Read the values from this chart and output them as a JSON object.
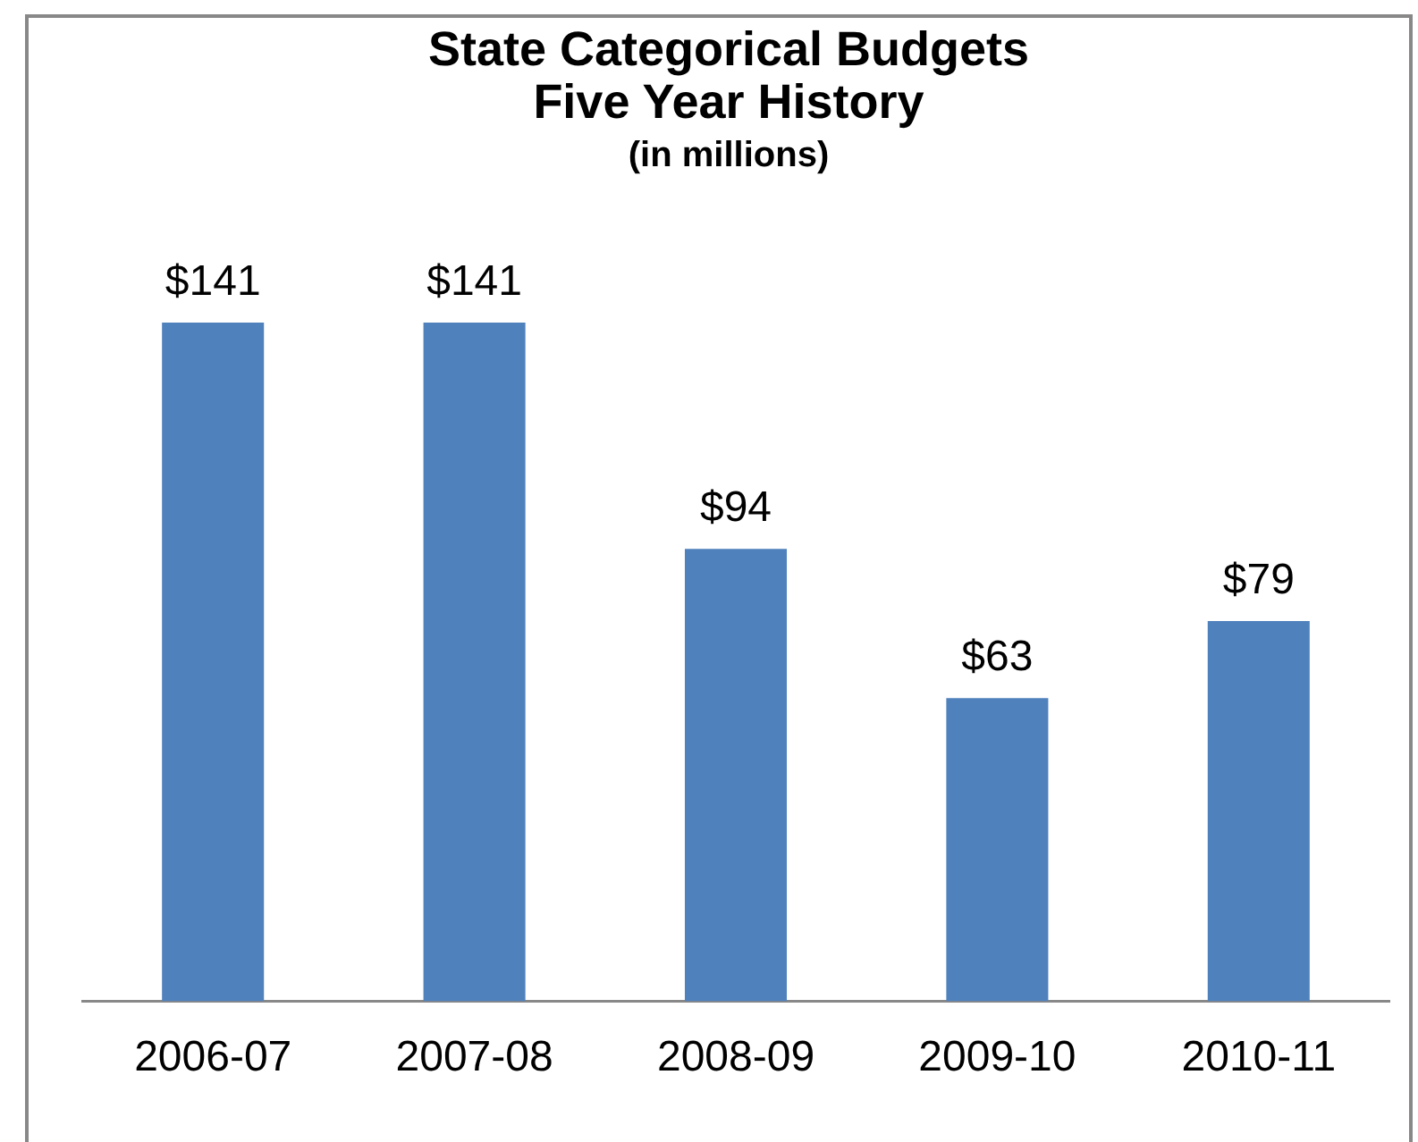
{
  "chart_data": {
    "type": "bar",
    "title": [
      "State Categorical Budgets",
      "Five Year History"
    ],
    "subtitle": "(in millions)",
    "categories": [
      "2006-07",
      "2007-08",
      "2008-09",
      "2009-10",
      "2010-11"
    ],
    "values": [
      141,
      141,
      94,
      63,
      79
    ],
    "value_labels": [
      "$141",
      "$141",
      "$94",
      "$63",
      "$79"
    ],
    "color": "#4f81bd",
    "grid": false,
    "legend": false
  }
}
